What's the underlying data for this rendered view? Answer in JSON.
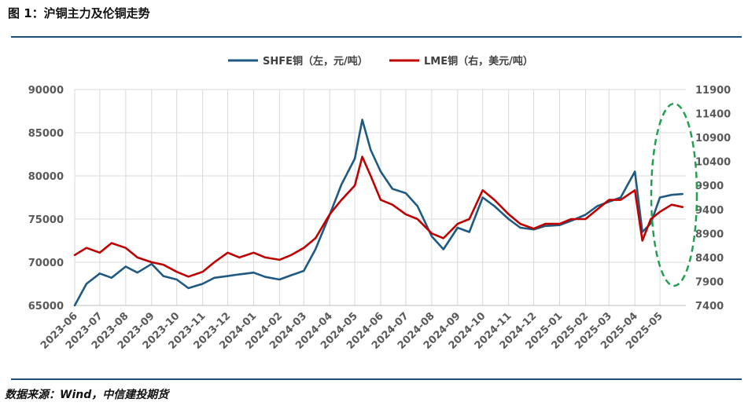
{
  "figure": {
    "title": "图 1：沪铜主力及伦铜走势",
    "source": "数据来源：Wind，中信建投期货"
  },
  "colors": {
    "shfe": "#1f5a82",
    "lme": "#c00000",
    "grid": "#d9d9d9",
    "highlight": "#22a050"
  },
  "chart_data": {
    "type": "line",
    "legend_position": "top-center",
    "grid": true,
    "x_ticks": [
      "2023-06",
      "2023-07",
      "2023-08",
      "2023-09",
      "2023-10",
      "2023-11",
      "2023-12",
      "2024-01",
      "2024-02",
      "2024-03",
      "2024-04",
      "2024-05",
      "2024-06",
      "2024-07",
      "2024-08",
      "2024-09",
      "2024-10",
      "2024-11",
      "2024-12",
      "2025-01",
      "2025-02",
      "2025-03",
      "2025-04",
      "2025-05"
    ],
    "y_left": {
      "ylim": [
        65000,
        90000
      ],
      "ticks": [
        "65000",
        "70000",
        "75000",
        "80000",
        "85000",
        "90000"
      ]
    },
    "y_right": {
      "ylim": [
        7400,
        11900
      ],
      "ticks": [
        "7400",
        "7900",
        "8400",
        "8900",
        "9400",
        "9900",
        "10400",
        "10900",
        "11400",
        "11900"
      ]
    },
    "series": [
      {
        "name": "SHFE铜（左，元/吨）",
        "axis": "left",
        "x": [
          "2023-06",
          "2023-06-15",
          "2023-07",
          "2023-07-15",
          "2023-08",
          "2023-08-15",
          "2023-09",
          "2023-09-15",
          "2023-10",
          "2023-10-15",
          "2023-11",
          "2023-11-15",
          "2023-12",
          "2023-12-15",
          "2024-01",
          "2024-01-15",
          "2024-02",
          "2024-02-15",
          "2024-03",
          "2024-03-15",
          "2024-04",
          "2024-04-15",
          "2024-05",
          "2024-05-10",
          "2024-05-20",
          "2024-06",
          "2024-06-15",
          "2024-07",
          "2024-07-15",
          "2024-08",
          "2024-08-15",
          "2024-09",
          "2024-09-15",
          "2024-10",
          "2024-10-15",
          "2024-11",
          "2024-11-15",
          "2024-12",
          "2024-12-15",
          "2025-01",
          "2025-01-15",
          "2025-02",
          "2025-02-15",
          "2025-03",
          "2025-03-15",
          "2025-04",
          "2025-04-10",
          "2025-04-20",
          "2025-05",
          "2025-05-15",
          "2025-05-28"
        ],
        "values": [
          65000,
          67500,
          68700,
          68200,
          69500,
          68800,
          69800,
          68400,
          68000,
          67000,
          67500,
          68200,
          68400,
          68600,
          68800,
          68300,
          68000,
          68500,
          69000,
          71500,
          75500,
          79000,
          82000,
          86500,
          83000,
          80500,
          78500,
          78000,
          76500,
          73000,
          71500,
          74000,
          73500,
          77500,
          76500,
          75000,
          74000,
          73800,
          74200,
          74300,
          74800,
          75500,
          76500,
          77000,
          77500,
          80500,
          73500,
          74500,
          77500,
          77800,
          77900
        ]
      },
      {
        "name": "LME铜（右，美元/吨）",
        "axis": "right",
        "x": [
          "2023-06",
          "2023-06-15",
          "2023-07",
          "2023-07-15",
          "2023-08",
          "2023-08-15",
          "2023-09",
          "2023-09-15",
          "2023-10",
          "2023-10-15",
          "2023-11",
          "2023-11-15",
          "2023-12",
          "2023-12-15",
          "2024-01",
          "2024-01-15",
          "2024-02",
          "2024-02-15",
          "2024-03",
          "2024-03-15",
          "2024-04",
          "2024-04-15",
          "2024-05",
          "2024-05-10",
          "2024-05-20",
          "2024-06",
          "2024-06-15",
          "2024-07",
          "2024-07-15",
          "2024-08",
          "2024-08-15",
          "2024-09",
          "2024-09-15",
          "2024-10",
          "2024-10-15",
          "2024-11",
          "2024-11-15",
          "2024-12",
          "2024-12-15",
          "2025-01",
          "2025-01-15",
          "2025-02",
          "2025-02-15",
          "2025-03",
          "2025-03-15",
          "2025-04",
          "2025-04-10",
          "2025-04-20",
          "2025-05",
          "2025-05-15",
          "2025-05-28"
        ],
        "values": [
          8450,
          8600,
          8500,
          8700,
          8600,
          8400,
          8300,
          8250,
          8100,
          8000,
          8100,
          8300,
          8500,
          8400,
          8500,
          8400,
          8350,
          8450,
          8600,
          8800,
          9300,
          9600,
          9900,
          10500,
          10100,
          9600,
          9500,
          9300,
          9200,
          8900,
          8800,
          9100,
          9200,
          9800,
          9600,
          9300,
          9100,
          9000,
          9100,
          9100,
          9200,
          9200,
          9400,
          9600,
          9600,
          9800,
          8750,
          9200,
          9350,
          9500,
          9450
        ]
      }
    ]
  }
}
